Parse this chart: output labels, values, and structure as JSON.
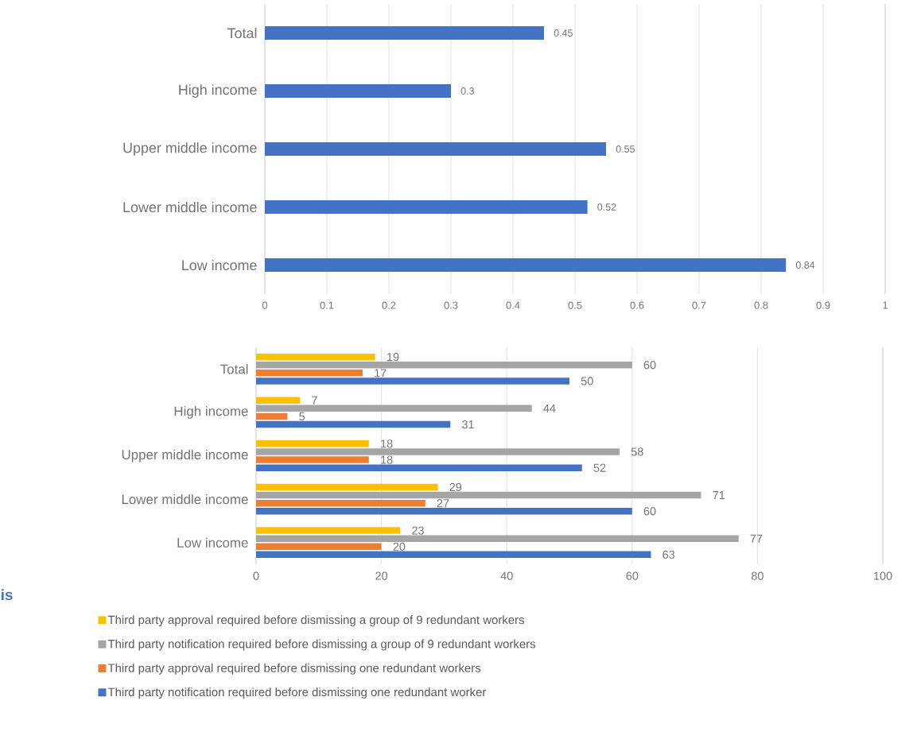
{
  "chart_data": [
    {
      "type": "bar",
      "orientation": "horizontal",
      "categories": [
        "Total",
        "High income",
        "Upper middle income",
        "Lower middle income",
        "Low income"
      ],
      "values": [
        0.45,
        0.3,
        0.55,
        0.52,
        0.84
      ],
      "color": "#4472c4",
      "xlim": [
        0,
        1
      ],
      "xticks": [
        0,
        0.1,
        0.2,
        0.3,
        0.4,
        0.5,
        0.6,
        0.7,
        0.8,
        0.9,
        1
      ],
      "grid": "x",
      "data_labels": true
    },
    {
      "type": "bar",
      "orientation": "horizontal",
      "categories": [
        "Total",
        "High income",
        "Upper middle income",
        "Lower middle income",
        "Low income"
      ],
      "series": [
        {
          "name": "Third party approval required before dismissing a group of 9 redundant workers",
          "color": "#ffc000",
          "values": [
            19,
            7,
            18,
            29,
            23
          ]
        },
        {
          "name": "Third party notification required  before dismissing a group of 9 redundant workers",
          "color": "#a5a5a5",
          "values": [
            60,
            44,
            58,
            71,
            77
          ]
        },
        {
          "name": "Third party approval required before dismissing one redundant workers",
          "color": "#ed7d31",
          "values": [
            17,
            5,
            18,
            27,
            20
          ]
        },
        {
          "name": "Third party notification required  before dismissing one redundant worker",
          "color": "#4472c4",
          "values": [
            50,
            31,
            52,
            60,
            63
          ]
        }
      ],
      "xlim": [
        0,
        100
      ],
      "xticks": [
        0,
        20,
        40,
        60,
        80,
        100
      ],
      "grid": "x",
      "data_labels": true,
      "legend": "bottom",
      "annotations": [
        "is"
      ]
    }
  ]
}
